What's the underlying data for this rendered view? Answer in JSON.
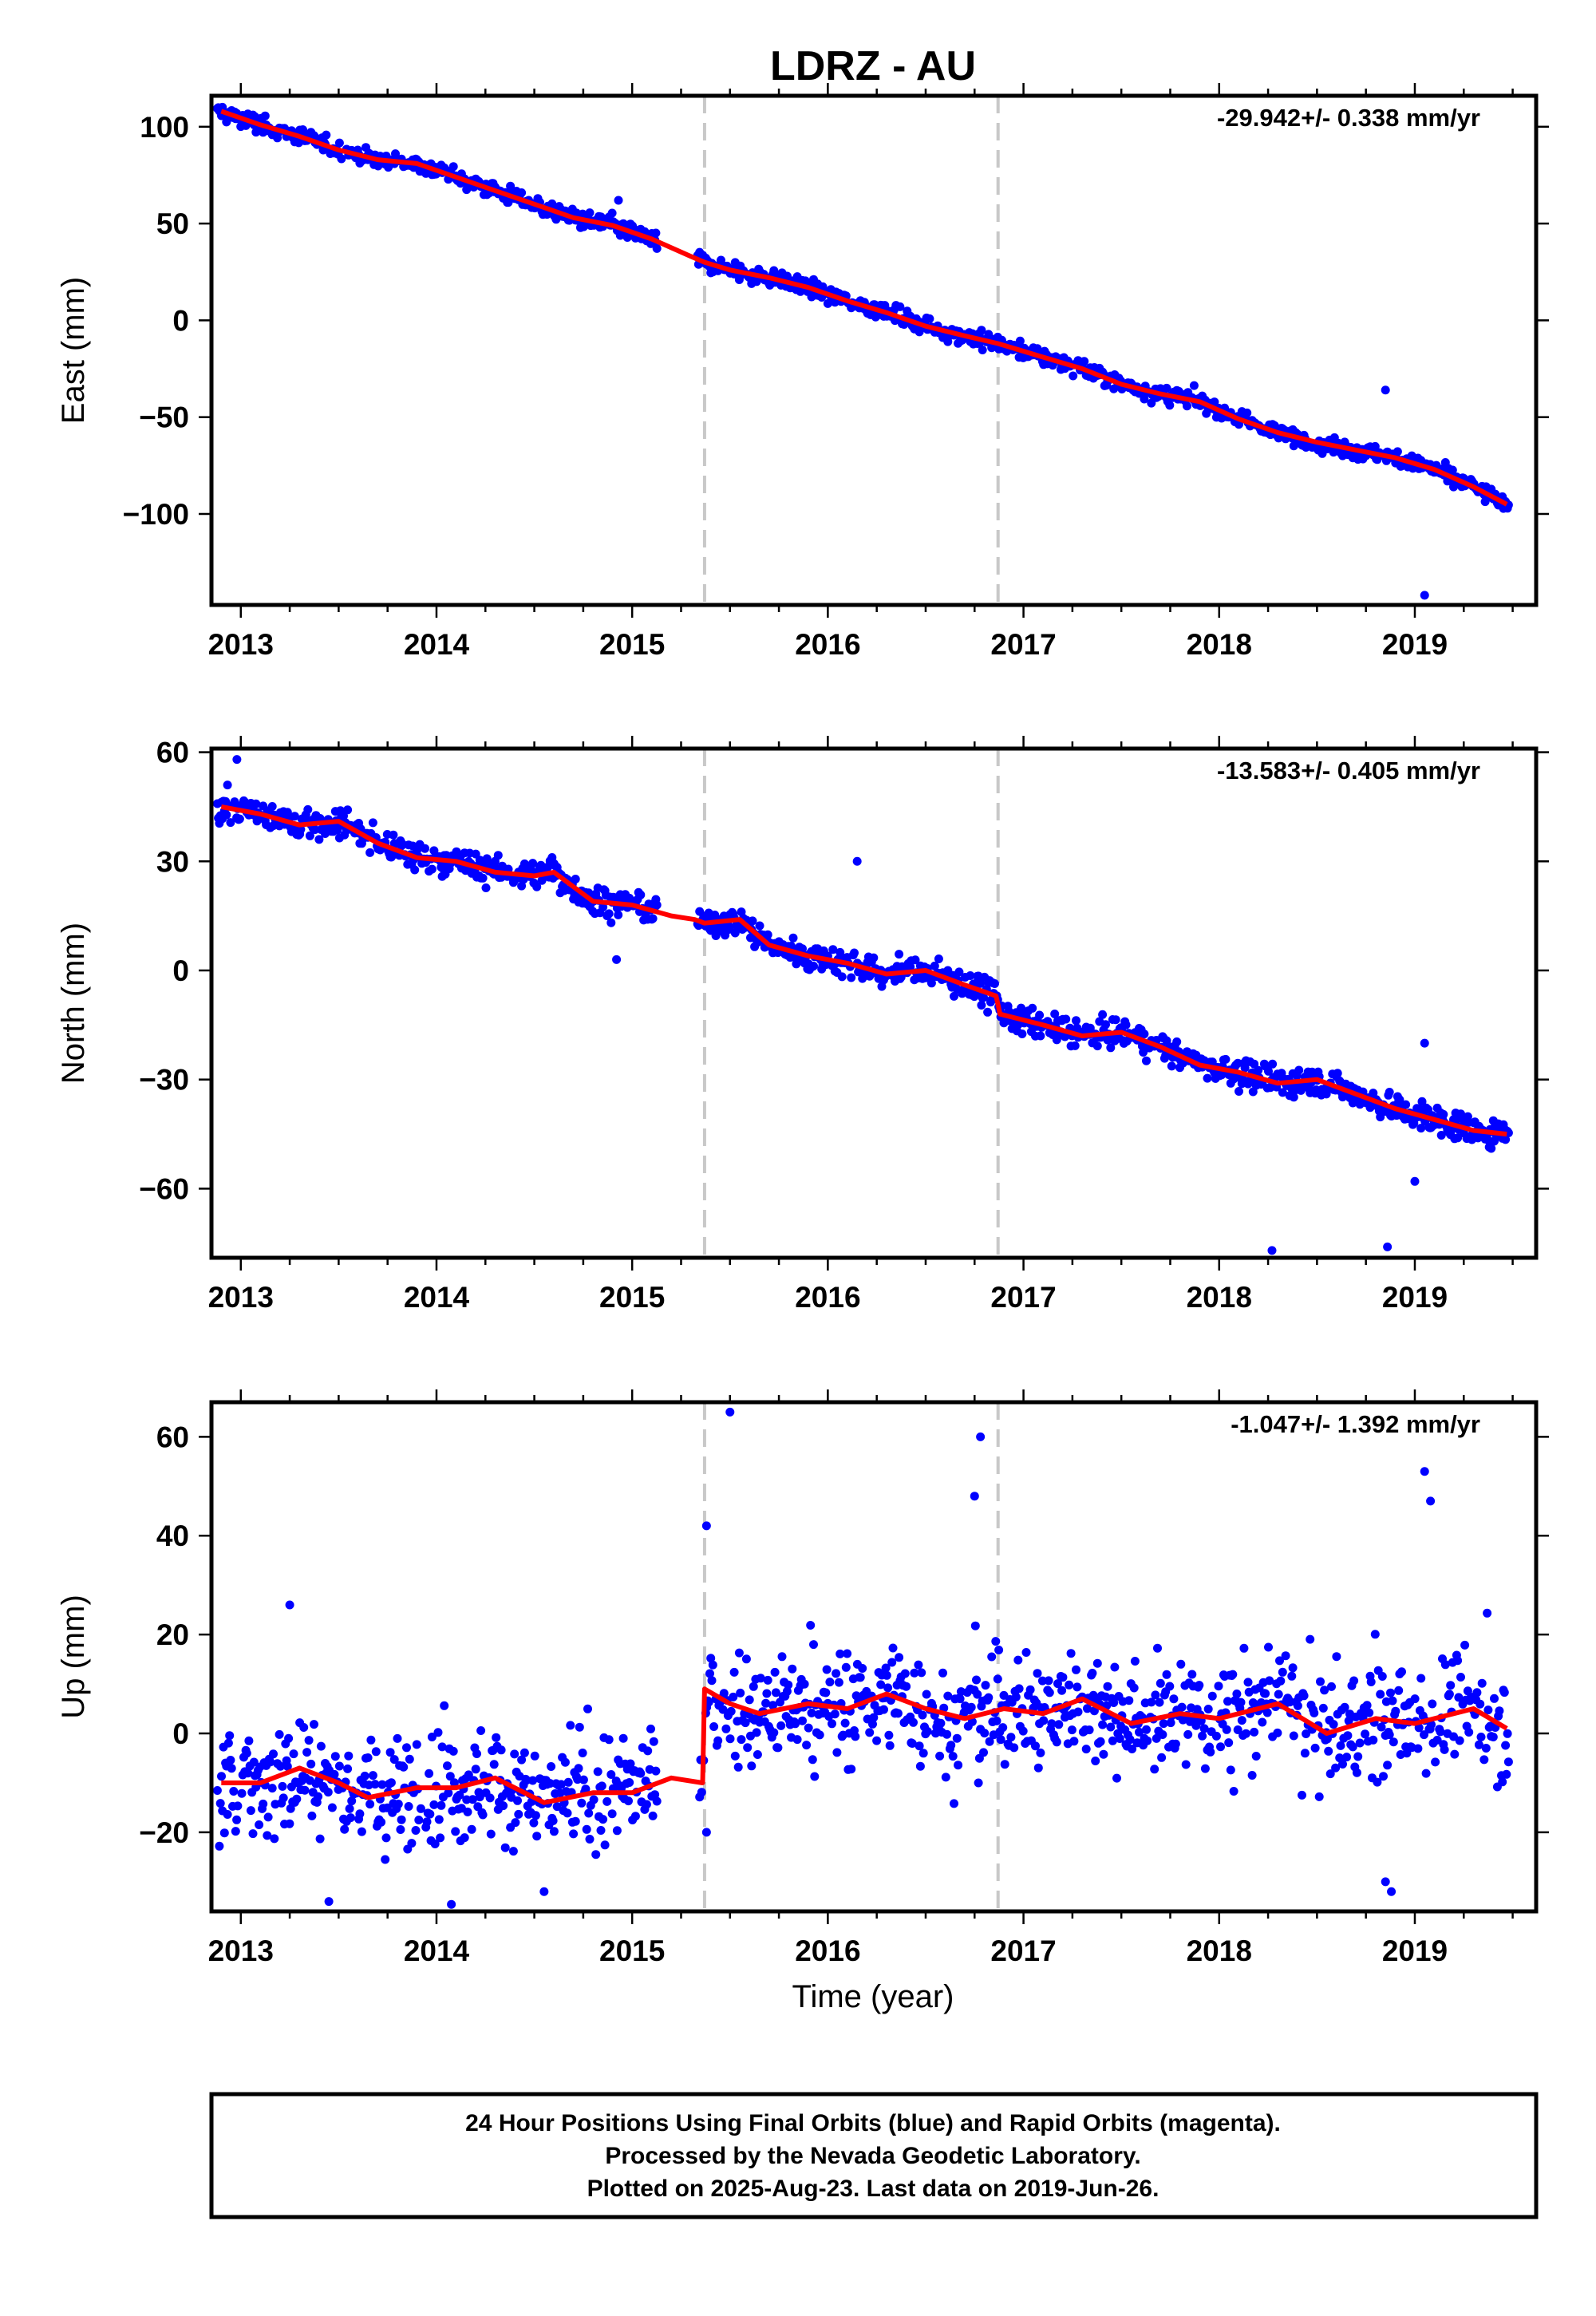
{
  "title": "LDRZ - AU",
  "colors": {
    "points": "#0000ff",
    "model": "#ff0000",
    "event_lines": "#c8c8c8"
  },
  "footer": {
    "line1": "24 Hour Positions Using Final Orbits (blue) and Rapid Orbits (magenta).",
    "line2": "Processed by the Nevada Geodetic Laboratory.",
    "line3": "Plotted on 2025-Aug-23. Last data on 2019-Jun-26."
  },
  "chart_data": [
    {
      "type": "scatter",
      "ylabel": "East (mm)",
      "rate": "-29.942+/- 0.338 mm/yr",
      "xlim": [
        2012.85,
        2019.62
      ],
      "ylim": [
        -147,
        116
      ],
      "x_ticks": [
        2013,
        2014,
        2015,
        2016,
        2017,
        2018,
        2019
      ],
      "y_ticks": [
        100,
        50,
        0,
        -50,
        -100
      ],
      "event_lines": [
        2015.37,
        2016.87
      ],
      "model": {
        "x": [
          2012.9,
          2013.1,
          2013.3,
          2013.5,
          2013.7,
          2013.9,
          2014.1,
          2014.3,
          2014.5,
          2014.7,
          2014.9,
          2015.1,
          2015.3,
          2015.37,
          2015.5,
          2015.7,
          2015.9,
          2016.1,
          2016.3,
          2016.5,
          2016.7,
          2016.87,
          2017.1,
          2017.3,
          2017.5,
          2017.7,
          2017.9,
          2018.1,
          2018.3,
          2018.5,
          2018.7,
          2018.9,
          2019.1,
          2019.3,
          2019.47
        ],
        "y": [
          108,
          101,
          95,
          88,
          83,
          81,
          74,
          67,
          60,
          53,
          49,
          42,
          33,
          30,
          26,
          22,
          17,
          10,
          4,
          -3,
          -8,
          -12,
          -19,
          -25,
          -33,
          -38,
          -42,
          -51,
          -58,
          -63,
          -67,
          -71,
          -77,
          -86,
          -95
        ]
      },
      "outliers": [
        {
          "x": 2019.05,
          "y": -142
        },
        {
          "x": 2018.85,
          "y": -36
        },
        {
          "x": 2014.93,
          "y": 62
        }
      ]
    },
    {
      "type": "scatter",
      "ylabel": "North (mm)",
      "rate": "-13.583+/- 0.405 mm/yr",
      "xlim": [
        2012.85,
        2019.62
      ],
      "ylim": [
        -79,
        61
      ],
      "x_ticks": [
        2013,
        2014,
        2015,
        2016,
        2017,
        2018,
        2019
      ],
      "y_ticks": [
        60,
        30,
        0,
        -30,
        -60
      ],
      "event_lines": [
        2015.37,
        2016.87
      ],
      "model": {
        "x": [
          2012.9,
          2013.1,
          2013.3,
          2013.5,
          2013.7,
          2013.9,
          2014.1,
          2014.3,
          2014.5,
          2014.6,
          2014.8,
          2015.0,
          2015.2,
          2015.32,
          2015.37,
          2015.55,
          2015.7,
          2015.9,
          2016.1,
          2016.3,
          2016.5,
          2016.7,
          2016.86,
          2016.88,
          2017.1,
          2017.3,
          2017.5,
          2017.7,
          2017.9,
          2018.1,
          2018.3,
          2018.5,
          2018.7,
          2018.9,
          2019.1,
          2019.3,
          2019.47
        ],
        "y": [
          45,
          43,
          40,
          41,
          35,
          31,
          30,
          27,
          26,
          27,
          19,
          18,
          15,
          14,
          13,
          14,
          7,
          4,
          2,
          -1,
          0,
          -4,
          -7,
          -12,
          -15,
          -18,
          -17,
          -21,
          -26,
          -28,
          -31,
          -30,
          -34,
          -38,
          -41,
          -44,
          -45
        ]
      },
      "outliers": [
        {
          "x": 2012.98,
          "y": 58
        },
        {
          "x": 2016.15,
          "y": 30
        },
        {
          "x": 2014.92,
          "y": 3
        },
        {
          "x": 2018.27,
          "y": -77
        },
        {
          "x": 2018.86,
          "y": -76
        },
        {
          "x": 2019.0,
          "y": -58
        },
        {
          "x": 2019.05,
          "y": -20
        }
      ]
    },
    {
      "type": "scatter",
      "ylabel": "Up (mm)",
      "xlabel": "Time (year)",
      "rate": "-1.047+/- 1.392 mm/yr",
      "xlim": [
        2012.85,
        2019.62
      ],
      "ylim": [
        -36,
        67
      ],
      "x_ticks": [
        2013,
        2014,
        2015,
        2016,
        2017,
        2018,
        2019
      ],
      "y_ticks": [
        60,
        40,
        20,
        0,
        -20
      ],
      "event_lines": [
        2015.37,
        2016.87
      ],
      "model": {
        "x": [
          2012.9,
          2013.1,
          2013.3,
          2013.5,
          2013.65,
          2013.9,
          2014.1,
          2014.3,
          2014.55,
          2014.8,
          2015.0,
          2015.2,
          2015.36,
          2015.37,
          2015.5,
          2015.65,
          2015.9,
          2016.1,
          2016.3,
          2016.5,
          2016.7,
          2016.9,
          2017.1,
          2017.3,
          2017.55,
          2017.8,
          2018.0,
          2018.3,
          2018.55,
          2018.8,
          2019.0,
          2019.3,
          2019.47
        ],
        "y": [
          -10,
          -10,
          -7,
          -10,
          -13,
          -11,
          -11,
          -9,
          -14,
          -12,
          -12,
          -9,
          -10,
          9,
          6,
          4,
          6,
          5,
          8,
          5,
          3,
          5,
          4,
          7,
          2,
          4,
          3,
          6,
          0,
          3,
          2,
          5,
          1
        ]
      },
      "outliers": [
        {
          "x": 2015.5,
          "y": 65
        },
        {
          "x": 2016.78,
          "y": 60
        },
        {
          "x": 2016.75,
          "y": 48
        },
        {
          "x": 2015.38,
          "y": 42
        },
        {
          "x": 2019.05,
          "y": 53
        },
        {
          "x": 2019.08,
          "y": 47
        },
        {
          "x": 2018.85,
          "y": -30
        },
        {
          "x": 2018.88,
          "y": -32
        },
        {
          "x": 2013.45,
          "y": -34
        },
        {
          "x": 2014.55,
          "y": -32
        },
        {
          "x": 2015.38,
          "y": -20
        },
        {
          "x": 2013.25,
          "y": 26
        }
      ]
    }
  ]
}
